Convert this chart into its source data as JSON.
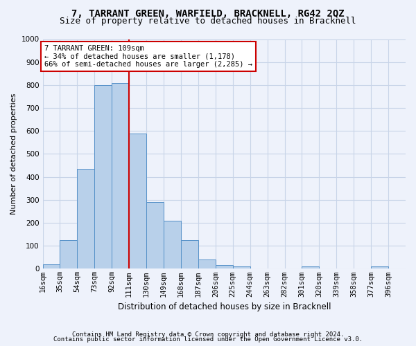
{
  "title": "7, TARRANT GREEN, WARFIELD, BRACKNELL, RG42 2QZ",
  "subtitle": "Size of property relative to detached houses in Bracknell",
  "xlabel": "Distribution of detached houses by size in Bracknell",
  "ylabel": "Number of detached properties",
  "bins": [
    "16sqm",
    "35sqm",
    "54sqm",
    "73sqm",
    "92sqm",
    "111sqm",
    "130sqm",
    "149sqm",
    "168sqm",
    "187sqm",
    "206sqm",
    "225sqm",
    "244sqm",
    "263sqm",
    "282sqm",
    "301sqm",
    "320sqm",
    "339sqm",
    "358sqm",
    "377sqm",
    "396sqm"
  ],
  "bin_edges": [
    16,
    35,
    54,
    73,
    92,
    111,
    130,
    149,
    168,
    187,
    206,
    225,
    244,
    263,
    282,
    301,
    320,
    339,
    358,
    377,
    396,
    415
  ],
  "values": [
    18,
    125,
    435,
    800,
    810,
    590,
    290,
    210,
    125,
    40,
    15,
    10,
    0,
    0,
    0,
    10,
    0,
    0,
    0,
    10,
    0
  ],
  "bar_color": "#b8d0ea",
  "bar_edge_color": "#5590c8",
  "grid_color": "#c8d4e8",
  "background_color": "#eef2fb",
  "property_label": "7 TARRANT GREEN: 109sqm",
  "pct_smaller": 34,
  "n_smaller": 1178,
  "pct_larger": 66,
  "n_larger": 2285,
  "red_line_x": 111,
  "annotation_box_color": "#ffffff",
  "annotation_border_color": "#cc0000",
  "red_line_color": "#cc0000",
  "footer1": "Contains HM Land Registry data © Crown copyright and database right 2024.",
  "footer2": "Contains public sector information licensed under the Open Government Licence v3.0.",
  "ylim": [
    0,
    1000
  ],
  "title_fontsize": 10,
  "subtitle_fontsize": 9,
  "ylabel_fontsize": 8,
  "xlabel_fontsize": 8.5,
  "tick_fontsize": 7.5,
  "ann_fontsize": 7.5,
  "footer_fontsize": 6.5
}
